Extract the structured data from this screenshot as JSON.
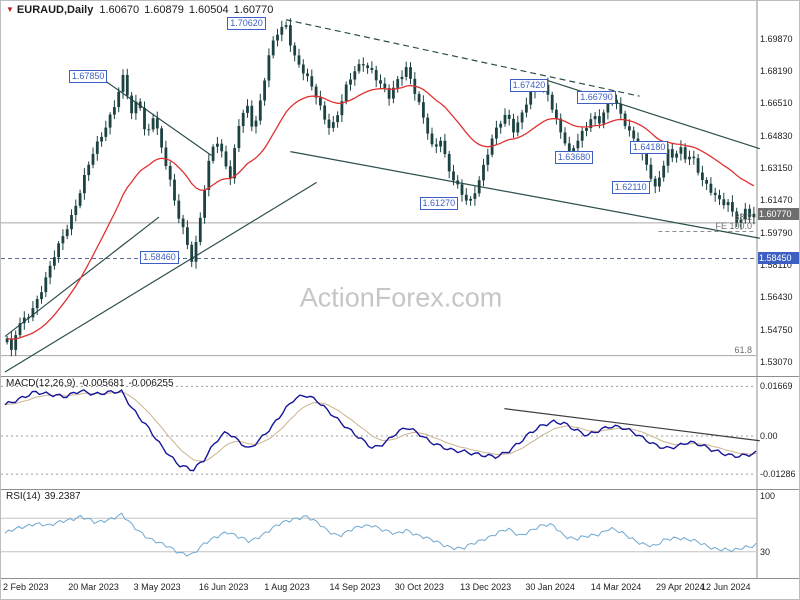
{
  "window": {
    "marker": "▼",
    "title_symbol": "EURAUD,Daily",
    "ohlc": {
      "open": "1.60670",
      "high": "1.60879",
      "low": "1.60504",
      "close": "1.60770"
    }
  },
  "watermark": "ActionForex.com",
  "colors": {
    "candle": "#1d4242",
    "ma": "#e03131",
    "macd": "#16169b",
    "signal": "#c9b491",
    "rsi": "#6fa8cf",
    "label_blue": "#3d5fc4",
    "trendline": "#2e4e4e",
    "grid": "#9a9a9a",
    "separator": "#8f8f8f"
  },
  "chart_data": {
    "type": "candlestick",
    "title": "EURAUD Daily candlestick chart with red moving average, MACD and RSI panels",
    "x_axis": {
      "labels": [
        "2 Feb 2023",
        "20 Mar 2023",
        "3 May 2023",
        "16 Jun 2023",
        "1 Aug 2023",
        "14 Sep 2023",
        "30 Oct 2023",
        "13 Dec 2023",
        "30 Jan 2024",
        "14 Mar 2024",
        "29 Apr 2024",
        "12 Jun 2024"
      ]
    },
    "panels": [
      {
        "name": "price",
        "y_range": [
          1.525,
          1.712
        ],
        "current_price": "1.60770",
        "axis_ticks": [
          "1.69870",
          "1.68190",
          "1.66510",
          "1.64830",
          "1.63150",
          "1.61470",
          "1.59790",
          "1.58110",
          "1.56430",
          "1.54750",
          "1.53070"
        ],
        "axis_badges": [
          {
            "text": "1.60770",
            "price": 1.6077,
            "bg": "#6e6e6e"
          },
          {
            "text": "1.58450",
            "price": 1.5845,
            "bg": "#3d5fc4"
          }
        ],
        "swing_labels": [
          {
            "text": "1.70620",
            "price": 1.7062,
            "f": 0.296
          },
          {
            "text": "1.67850",
            "price": 1.6785,
            "f": 0.085
          },
          {
            "text": "1.67420",
            "price": 1.6742,
            "f": 0.672
          },
          {
            "text": "1.66790",
            "price": 1.6679,
            "f": 0.762
          },
          {
            "text": "1.63680",
            "price": 1.6368,
            "f": 0.732
          },
          {
            "text": "1.64180",
            "price": 1.6418,
            "f": 0.832
          },
          {
            "text": "1.62110",
            "price": 1.6211,
            "f": 0.808
          },
          {
            "text": "1.61270",
            "price": 1.6127,
            "f": 0.552
          },
          {
            "text": "1.58460",
            "price": 1.5846,
            "f": 0.18
          }
        ],
        "levels": [
          {
            "price": 1.603,
            "style": "solid",
            "color": "#a8a8a8",
            "span": "full",
            "label": "38.2"
          },
          {
            "price": 1.534,
            "style": "solid",
            "color": "#a8a8a8",
            "span": "full",
            "label": "61.8"
          },
          {
            "price": 1.5985,
            "style": "dashed",
            "color": "#8f8f8f",
            "span": "right",
            "label": "FE 100.0"
          },
          {
            "price": 1.5845,
            "style": "dashed",
            "color": "#5a6b8c",
            "span": "full",
            "label": null
          }
        ],
        "trendlines": [
          {
            "x1": 0.0,
            "p1": 1.5255,
            "x2": 0.415,
            "p2": 1.624,
            "dash": false
          },
          {
            "x1": 0.0,
            "p1": 1.544,
            "x2": 0.205,
            "p2": 1.606,
            "dash": false
          },
          {
            "x1": 0.125,
            "p1": 1.679,
            "x2": 0.275,
            "p2": 1.638,
            "dash": false
          },
          {
            "x1": 0.374,
            "p1": 1.7085,
            "x2": 0.845,
            "p2": 1.6688,
            "dash": true
          },
          {
            "x1": 0.718,
            "p1": 1.6775,
            "x2": 1.005,
            "p2": 1.6415,
            "dash": false
          },
          {
            "x1": 0.38,
            "p1": 1.64,
            "x2": 1.005,
            "p2": 1.595,
            "dash": false
          }
        ],
        "price_path_anchors": [
          [
            0.0,
            1.548
          ],
          [
            0.008,
            1.534
          ],
          [
            0.016,
            1.547
          ],
          [
            0.035,
            1.558
          ],
          [
            0.055,
            1.574
          ],
          [
            0.075,
            1.594
          ],
          [
            0.095,
            1.614
          ],
          [
            0.115,
            1.636
          ],
          [
            0.135,
            1.655
          ],
          [
            0.148,
            1.667
          ],
          [
            0.158,
            1.6785
          ],
          [
            0.168,
            1.658
          ],
          [
            0.178,
            1.669
          ],
          [
            0.188,
            1.648
          ],
          [
            0.198,
            1.66
          ],
          [
            0.208,
            1.641
          ],
          [
            0.218,
            1.627
          ],
          [
            0.228,
            1.611
          ],
          [
            0.236,
            1.603
          ],
          [
            0.244,
            1.591
          ],
          [
            0.25,
            1.5815
          ],
          [
            0.258,
            1.599
          ],
          [
            0.27,
            1.631
          ],
          [
            0.28,
            1.649
          ],
          [
            0.292,
            1.637
          ],
          [
            0.3,
            1.626
          ],
          [
            0.312,
            1.654
          ],
          [
            0.322,
            1.664
          ],
          [
            0.331,
            1.652
          ],
          [
            0.34,
            1.667
          ],
          [
            0.35,
            1.687
          ],
          [
            0.36,
            1.699
          ],
          [
            0.374,
            1.7062
          ],
          [
            0.384,
            1.692
          ],
          [
            0.394,
            1.684
          ],
          [
            0.404,
            1.676
          ],
          [
            0.414,
            1.668
          ],
          [
            0.424,
            1.659
          ],
          [
            0.434,
            1.653
          ],
          [
            0.444,
            1.661
          ],
          [
            0.454,
            1.672
          ],
          [
            0.464,
            1.68
          ],
          [
            0.476,
            1.6875
          ],
          [
            0.488,
            1.683
          ],
          [
            0.5,
            1.674
          ],
          [
            0.512,
            1.667
          ],
          [
            0.524,
            1.679
          ],
          [
            0.535,
            1.685
          ],
          [
            0.547,
            1.669
          ],
          [
            0.558,
            1.655
          ],
          [
            0.57,
            1.641
          ],
          [
            0.58,
            1.648
          ],
          [
            0.59,
            1.632
          ],
          [
            0.6,
            1.622
          ],
          [
            0.61,
            1.616
          ],
          [
            0.618,
            1.6127
          ],
          [
            0.628,
            1.623
          ],
          [
            0.638,
            1.634
          ],
          [
            0.648,
            1.645
          ],
          [
            0.658,
            1.653
          ],
          [
            0.668,
            1.66
          ],
          [
            0.678,
            1.652
          ],
          [
            0.688,
            1.66
          ],
          [
            0.698,
            1.668
          ],
          [
            0.71,
            1.6735
          ],
          [
            0.72,
            1.6742
          ],
          [
            0.728,
            1.665
          ],
          [
            0.736,
            1.655
          ],
          [
            0.744,
            1.646
          ],
          [
            0.752,
            1.6368
          ],
          [
            0.762,
            1.645
          ],
          [
            0.772,
            1.653
          ],
          [
            0.782,
            1.66
          ],
          [
            0.792,
            1.655
          ],
          [
            0.801,
            1.662
          ],
          [
            0.81,
            1.6679
          ],
          [
            0.82,
            1.66
          ],
          [
            0.83,
            1.653
          ],
          [
            0.839,
            1.645
          ],
          [
            0.848,
            1.637
          ],
          [
            0.857,
            1.629
          ],
          [
            0.866,
            1.6211
          ],
          [
            0.874,
            1.631
          ],
          [
            0.882,
            1.6418
          ],
          [
            0.89,
            1.636
          ],
          [
            0.898,
            1.641
          ],
          [
            0.906,
            1.635
          ],
          [
            0.914,
            1.639
          ],
          [
            0.922,
            1.632
          ],
          [
            0.93,
            1.626
          ],
          [
            0.938,
            1.62
          ],
          [
            0.946,
            1.616
          ],
          [
            0.954,
            1.611
          ],
          [
            0.962,
            1.6145
          ],
          [
            0.97,
            1.608
          ],
          [
            0.978,
            1.604
          ],
          [
            0.986,
            1.61
          ],
          [
            0.993,
            1.605
          ],
          [
            1.0,
            1.6077
          ]
        ]
      },
      {
        "name": "macd",
        "label": "MACD(12,26,9)",
        "values": [
          "-0.005681",
          "-0.006255"
        ],
        "y_range": [
          -0.0165,
          0.0185
        ],
        "axis_ticks": [
          {
            "text": "0.01669",
            "v": 0.01669
          },
          {
            "text": "0.00",
            "v": 0
          },
          {
            "text": "-0.01286",
            "v": -0.01286
          }
        ],
        "trendline": {
          "from": [
            0.665,
            0.0092
          ],
          "to": [
            1.005,
            -0.0016
          ]
        },
        "anchors": [
          [
            0.0,
            0.0105
          ],
          [
            0.02,
            0.0125
          ],
          [
            0.04,
            0.0148
          ],
          [
            0.06,
            0.014
          ],
          [
            0.08,
            0.0132
          ],
          [
            0.1,
            0.0152
          ],
          [
            0.12,
            0.014
          ],
          [
            0.14,
            0.0148
          ],
          [
            0.155,
            0.015
          ],
          [
            0.17,
            0.009
          ],
          [
            0.19,
            0.003
          ],
          [
            0.21,
            -0.004
          ],
          [
            0.23,
            -0.0095
          ],
          [
            0.25,
            -0.0115
          ],
          [
            0.265,
            -0.008
          ],
          [
            0.28,
            -0.002
          ],
          [
            0.295,
            0.0015
          ],
          [
            0.31,
            -0.0015
          ],
          [
            0.325,
            -0.0045
          ],
          [
            0.34,
            -0.001
          ],
          [
            0.355,
            0.003
          ],
          [
            0.37,
            0.008
          ],
          [
            0.385,
            0.0125
          ],
          [
            0.4,
            0.0138
          ],
          [
            0.415,
            0.012
          ],
          [
            0.43,
            0.0085
          ],
          [
            0.445,
            0.005
          ],
          [
            0.46,
            0.0018
          ],
          [
            0.475,
            -0.0012
          ],
          [
            0.49,
            -0.0042
          ],
          [
            0.505,
            -0.0025
          ],
          [
            0.52,
            0.0008
          ],
          [
            0.535,
            0.003
          ],
          [
            0.55,
            0.001
          ],
          [
            0.565,
            -0.0018
          ],
          [
            0.58,
            -0.0035
          ],
          [
            0.595,
            -0.0048
          ],
          [
            0.61,
            -0.0052
          ],
          [
            0.625,
            -0.006
          ],
          [
            0.64,
            -0.0066
          ],
          [
            0.655,
            -0.007
          ],
          [
            0.67,
            -0.0052
          ],
          [
            0.685,
            -0.0022
          ],
          [
            0.7,
            0.0012
          ],
          [
            0.715,
            0.0035
          ],
          [
            0.73,
            0.0048
          ],
          [
            0.745,
            0.0042
          ],
          [
            0.76,
            0.002
          ],
          [
            0.775,
            0.0002
          ],
          [
            0.79,
            0.0018
          ],
          [
            0.805,
            0.0032
          ],
          [
            0.82,
            0.003
          ],
          [
            0.835,
            0.0015
          ],
          [
            0.85,
            -0.0008
          ],
          [
            0.865,
            -0.003
          ],
          [
            0.88,
            -0.0042
          ],
          [
            0.895,
            -0.0035
          ],
          [
            0.91,
            -0.002
          ],
          [
            0.925,
            -0.0028
          ],
          [
            0.94,
            -0.0045
          ],
          [
            0.955,
            -0.0058
          ],
          [
            0.97,
            -0.0068
          ],
          [
            0.985,
            -0.0066
          ],
          [
            1.0,
            -0.0057
          ]
        ]
      },
      {
        "name": "rsi",
        "label": "RSI(14)",
        "value": "39.2387",
        "y_range": [
          0,
          100
        ],
        "guides": [
          70,
          30
        ],
        "axis_ticks": [
          {
            "text": "100",
            "v": 100
          },
          {
            "text": "30",
            "v": 30
          }
        ],
        "anchors": [
          [
            0.0,
            52
          ],
          [
            0.02,
            58
          ],
          [
            0.04,
            65
          ],
          [
            0.06,
            60
          ],
          [
            0.08,
            68
          ],
          [
            0.1,
            72
          ],
          [
            0.12,
            64
          ],
          [
            0.14,
            70
          ],
          [
            0.155,
            74
          ],
          [
            0.17,
            60
          ],
          [
            0.19,
            48
          ],
          [
            0.21,
            38
          ],
          [
            0.23,
            30
          ],
          [
            0.25,
            27
          ],
          [
            0.265,
            38
          ],
          [
            0.28,
            48
          ],
          [
            0.295,
            55
          ],
          [
            0.31,
            47
          ],
          [
            0.325,
            42
          ],
          [
            0.34,
            50
          ],
          [
            0.355,
            57
          ],
          [
            0.37,
            64
          ],
          [
            0.385,
            70
          ],
          [
            0.4,
            73
          ],
          [
            0.415,
            64
          ],
          [
            0.43,
            55
          ],
          [
            0.445,
            50
          ],
          [
            0.46,
            55
          ],
          [
            0.475,
            60
          ],
          [
            0.49,
            63
          ],
          [
            0.505,
            55
          ],
          [
            0.52,
            50
          ],
          [
            0.535,
            57
          ],
          [
            0.55,
            50
          ],
          [
            0.565,
            44
          ],
          [
            0.58,
            40
          ],
          [
            0.595,
            36
          ],
          [
            0.61,
            33
          ],
          [
            0.625,
            40
          ],
          [
            0.64,
            47
          ],
          [
            0.655,
            52
          ],
          [
            0.67,
            56
          ],
          [
            0.685,
            50
          ],
          [
            0.7,
            56
          ],
          [
            0.715,
            60
          ],
          [
            0.73,
            62
          ],
          [
            0.745,
            50
          ],
          [
            0.76,
            44
          ],
          [
            0.775,
            48
          ],
          [
            0.79,
            52
          ],
          [
            0.805,
            58
          ],
          [
            0.82,
            52
          ],
          [
            0.835,
            46
          ],
          [
            0.85,
            40
          ],
          [
            0.865,
            35
          ],
          [
            0.88,
            45
          ],
          [
            0.895,
            48
          ],
          [
            0.91,
            44
          ],
          [
            0.925,
            40
          ],
          [
            0.94,
            36
          ],
          [
            0.955,
            33
          ],
          [
            0.97,
            30
          ],
          [
            0.985,
            36
          ],
          [
            1.0,
            39.24
          ]
        ]
      }
    ]
  }
}
